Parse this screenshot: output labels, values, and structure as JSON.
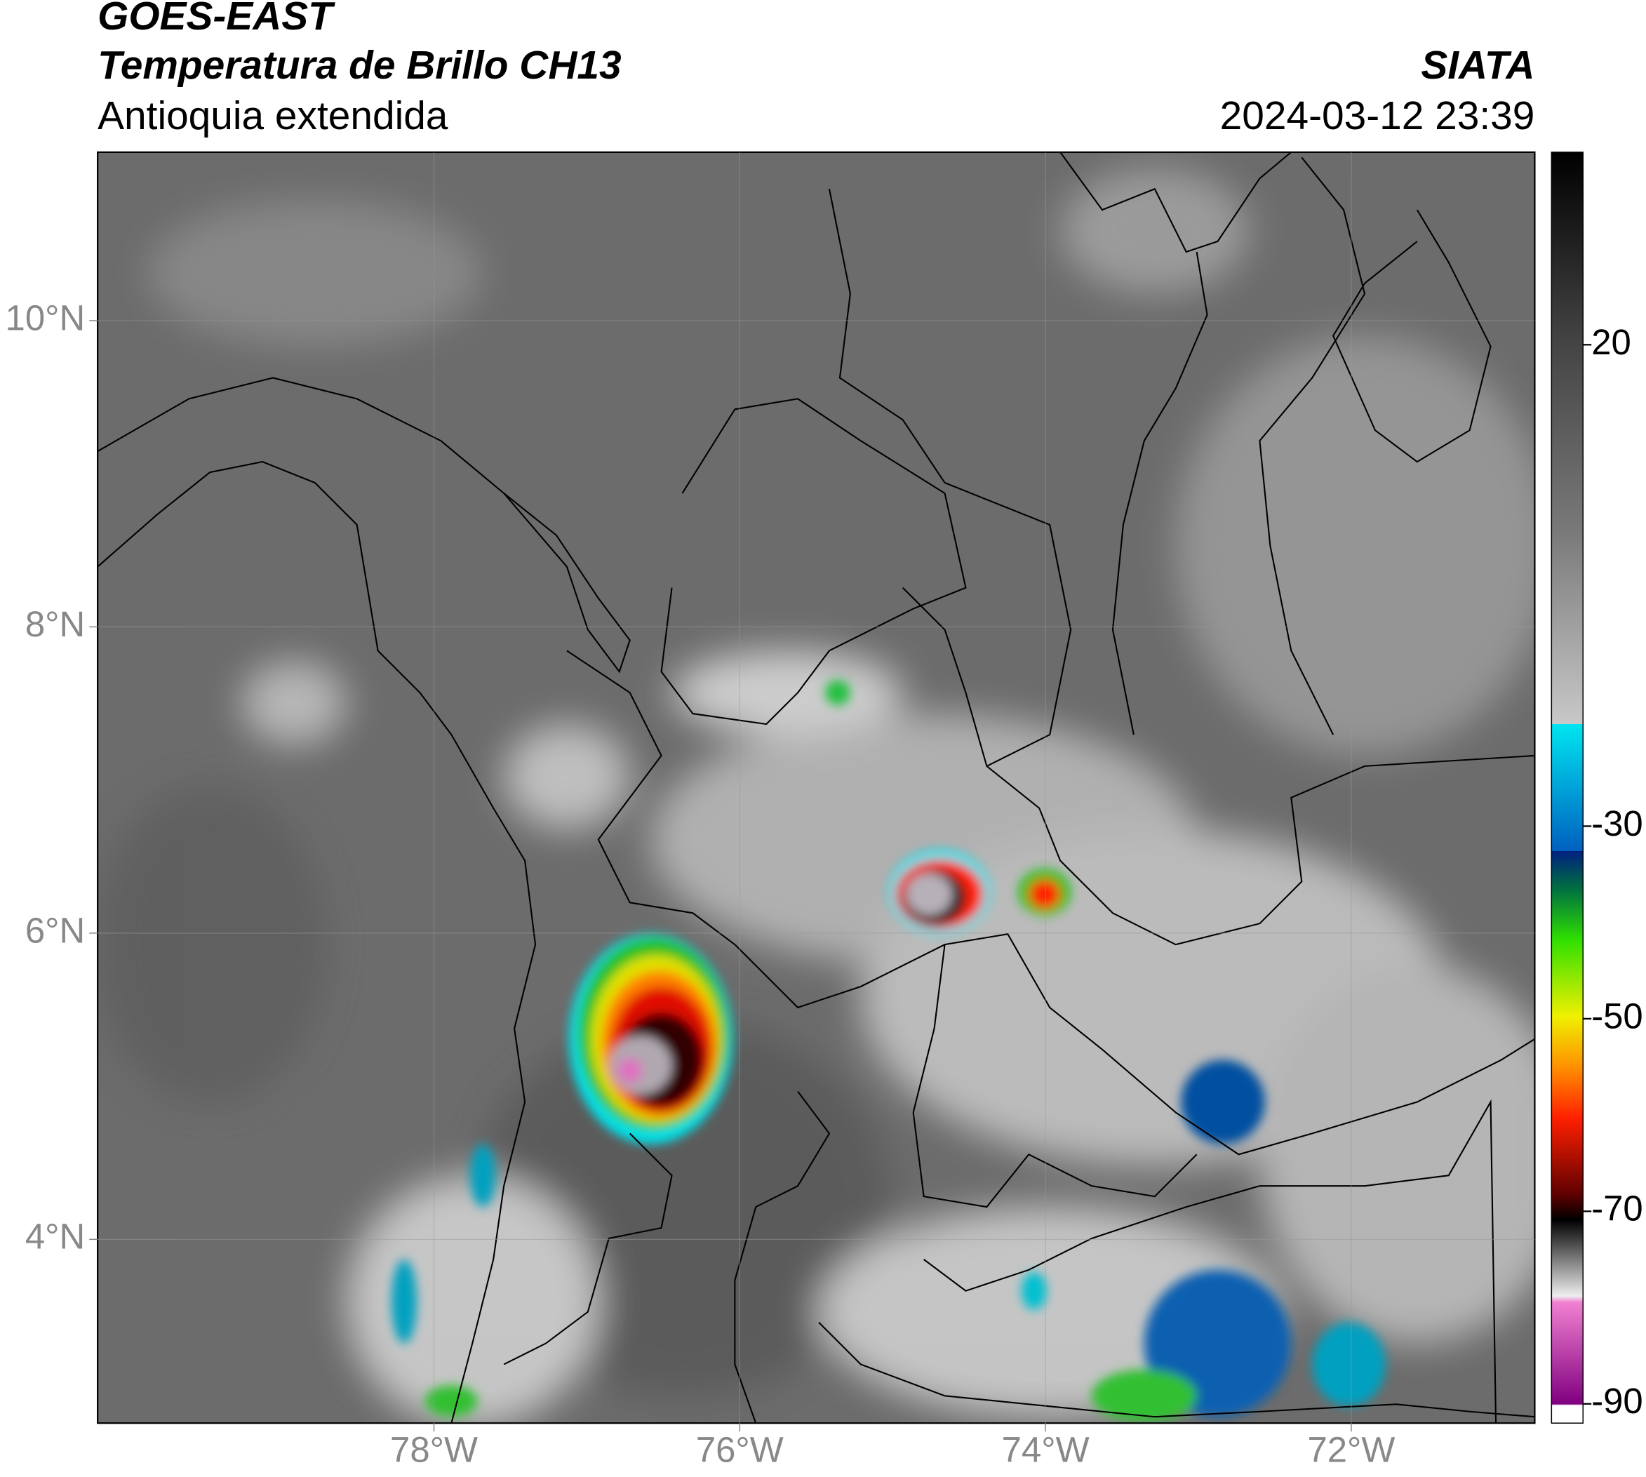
{
  "header": {
    "title": "GOES-EAST",
    "subtitle": "Temperatura de Brillo CH13",
    "region": "Antioquia extendida",
    "source": "SIATA",
    "datetime": "2024-03-12 23:39"
  },
  "chart_data": {
    "type": "map",
    "xlim": [
      -80.2,
      -70.8
    ],
    "ylim": [
      2.8,
      11.1
    ],
    "xticks": [
      {
        "value": -78,
        "label": "78°W"
      },
      {
        "value": -76,
        "label": "76°W"
      },
      {
        "value": -74,
        "label": "74°W"
      },
      {
        "value": -72,
        "label": "72°W"
      }
    ],
    "yticks": [
      {
        "value": 10,
        "label": "10°N"
      },
      {
        "value": 8,
        "label": "8°N"
      },
      {
        "value": 6,
        "label": "6°N"
      },
      {
        "value": 4,
        "label": "4°N"
      }
    ],
    "grid": true,
    "colorbar": {
      "lim": [
        -92,
        40
      ],
      "ticks": [
        20,
        -30,
        -50,
        -70,
        -90
      ]
    }
  }
}
